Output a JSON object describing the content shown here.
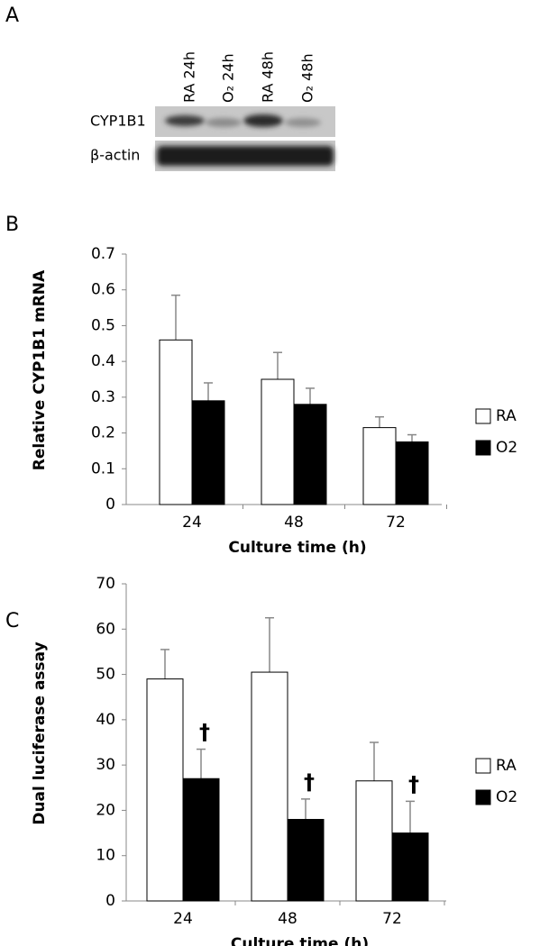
{
  "panel_labels": [
    "A",
    "B",
    "C"
  ],
  "blot": {
    "lanes": [
      "RA 24h",
      "O₂ 24h",
      "RA 48h",
      "O₂ 48h"
    ],
    "rows": [
      "CYP1B1",
      "β-actin"
    ]
  },
  "chart_data": [
    {
      "type": "bar",
      "y_label": "Relative CYP1B1 mRNA",
      "x_label": "Culture time (h)",
      "categories": [
        "24",
        "48",
        "72"
      ],
      "series": [
        {
          "name": "RA",
          "color": "#ffffff",
          "values": [
            0.46,
            0.35,
            0.215
          ],
          "errors": [
            0.125,
            0.075,
            0.03
          ]
        },
        {
          "name": "O2",
          "color": "#000000",
          "values": [
            0.29,
            0.28,
            0.175
          ],
          "errors": [
            0.05,
            0.045,
            0.02
          ]
        }
      ],
      "ylim": [
        0,
        0.7
      ],
      "yticks": [
        0,
        0.1,
        0.2,
        0.3,
        0.4,
        0.5,
        0.6,
        0.7
      ],
      "legend": "right"
    },
    {
      "type": "bar",
      "y_label": "Dual luciferase assay",
      "x_label": "Culture time (h)",
      "categories": [
        "24",
        "48",
        "72"
      ],
      "series": [
        {
          "name": "RA",
          "color": "#ffffff",
          "values": [
            49,
            50.5,
            26.5
          ],
          "errors": [
            6.5,
            12,
            8.5
          ]
        },
        {
          "name": "O2",
          "color": "#000000",
          "values": [
            27,
            18,
            15
          ],
          "errors": [
            6.5,
            4.5,
            7
          ],
          "annotations": [
            "†",
            "†",
            "†"
          ]
        }
      ],
      "ylim": [
        0,
        70
      ],
      "yticks": [
        0,
        10,
        20,
        30,
        40,
        50,
        60,
        70
      ],
      "legend": "right"
    }
  ]
}
